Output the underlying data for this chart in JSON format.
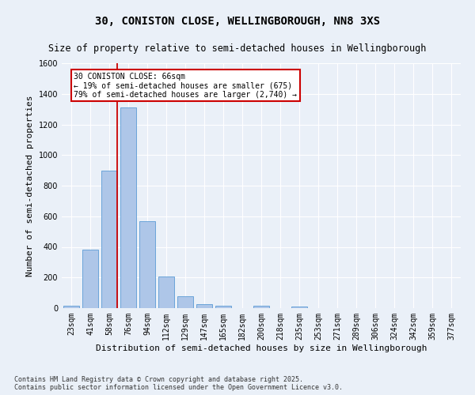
{
  "title": "30, CONISTON CLOSE, WELLINGBOROUGH, NN8 3XS",
  "subtitle": "Size of property relative to semi-detached houses in Wellingborough",
  "xlabel": "Distribution of semi-detached houses by size in Wellingborough",
  "ylabel": "Number of semi-detached properties",
  "bins": [
    "23sqm",
    "41sqm",
    "58sqm",
    "76sqm",
    "94sqm",
    "112sqm",
    "129sqm",
    "147sqm",
    "165sqm",
    "182sqm",
    "200sqm",
    "218sqm",
    "235sqm",
    "253sqm",
    "271sqm",
    "289sqm",
    "306sqm",
    "324sqm",
    "342sqm",
    "359sqm",
    "377sqm"
  ],
  "bar_values": [
    15,
    380,
    900,
    1310,
    570,
    205,
    75,
    25,
    15,
    0,
    15,
    0,
    10,
    0,
    0,
    0,
    0,
    0,
    0,
    0,
    0
  ],
  "bar_color": "#aec6e8",
  "bar_edge_color": "#5b9bd5",
  "background_color": "#eaf0f8",
  "grid_color": "#ffffff",
  "red_line_x": 2.43,
  "annotation_text": "30 CONISTON CLOSE: 66sqm\n← 19% of semi-detached houses are smaller (675)\n79% of semi-detached houses are larger (2,740) →",
  "annotation_box_color": "#ffffff",
  "annotation_border_color": "#cc0000",
  "ylim": [
    0,
    1600
  ],
  "yticks": [
    0,
    200,
    400,
    600,
    800,
    1000,
    1200,
    1400,
    1600
  ],
  "footnote": "Contains HM Land Registry data © Crown copyright and database right 2025.\nContains public sector information licensed under the Open Government Licence v3.0.",
  "title_fontsize": 10,
  "subtitle_fontsize": 8.5,
  "axis_label_fontsize": 8,
  "tick_fontsize": 7,
  "footnote_fontsize": 6
}
